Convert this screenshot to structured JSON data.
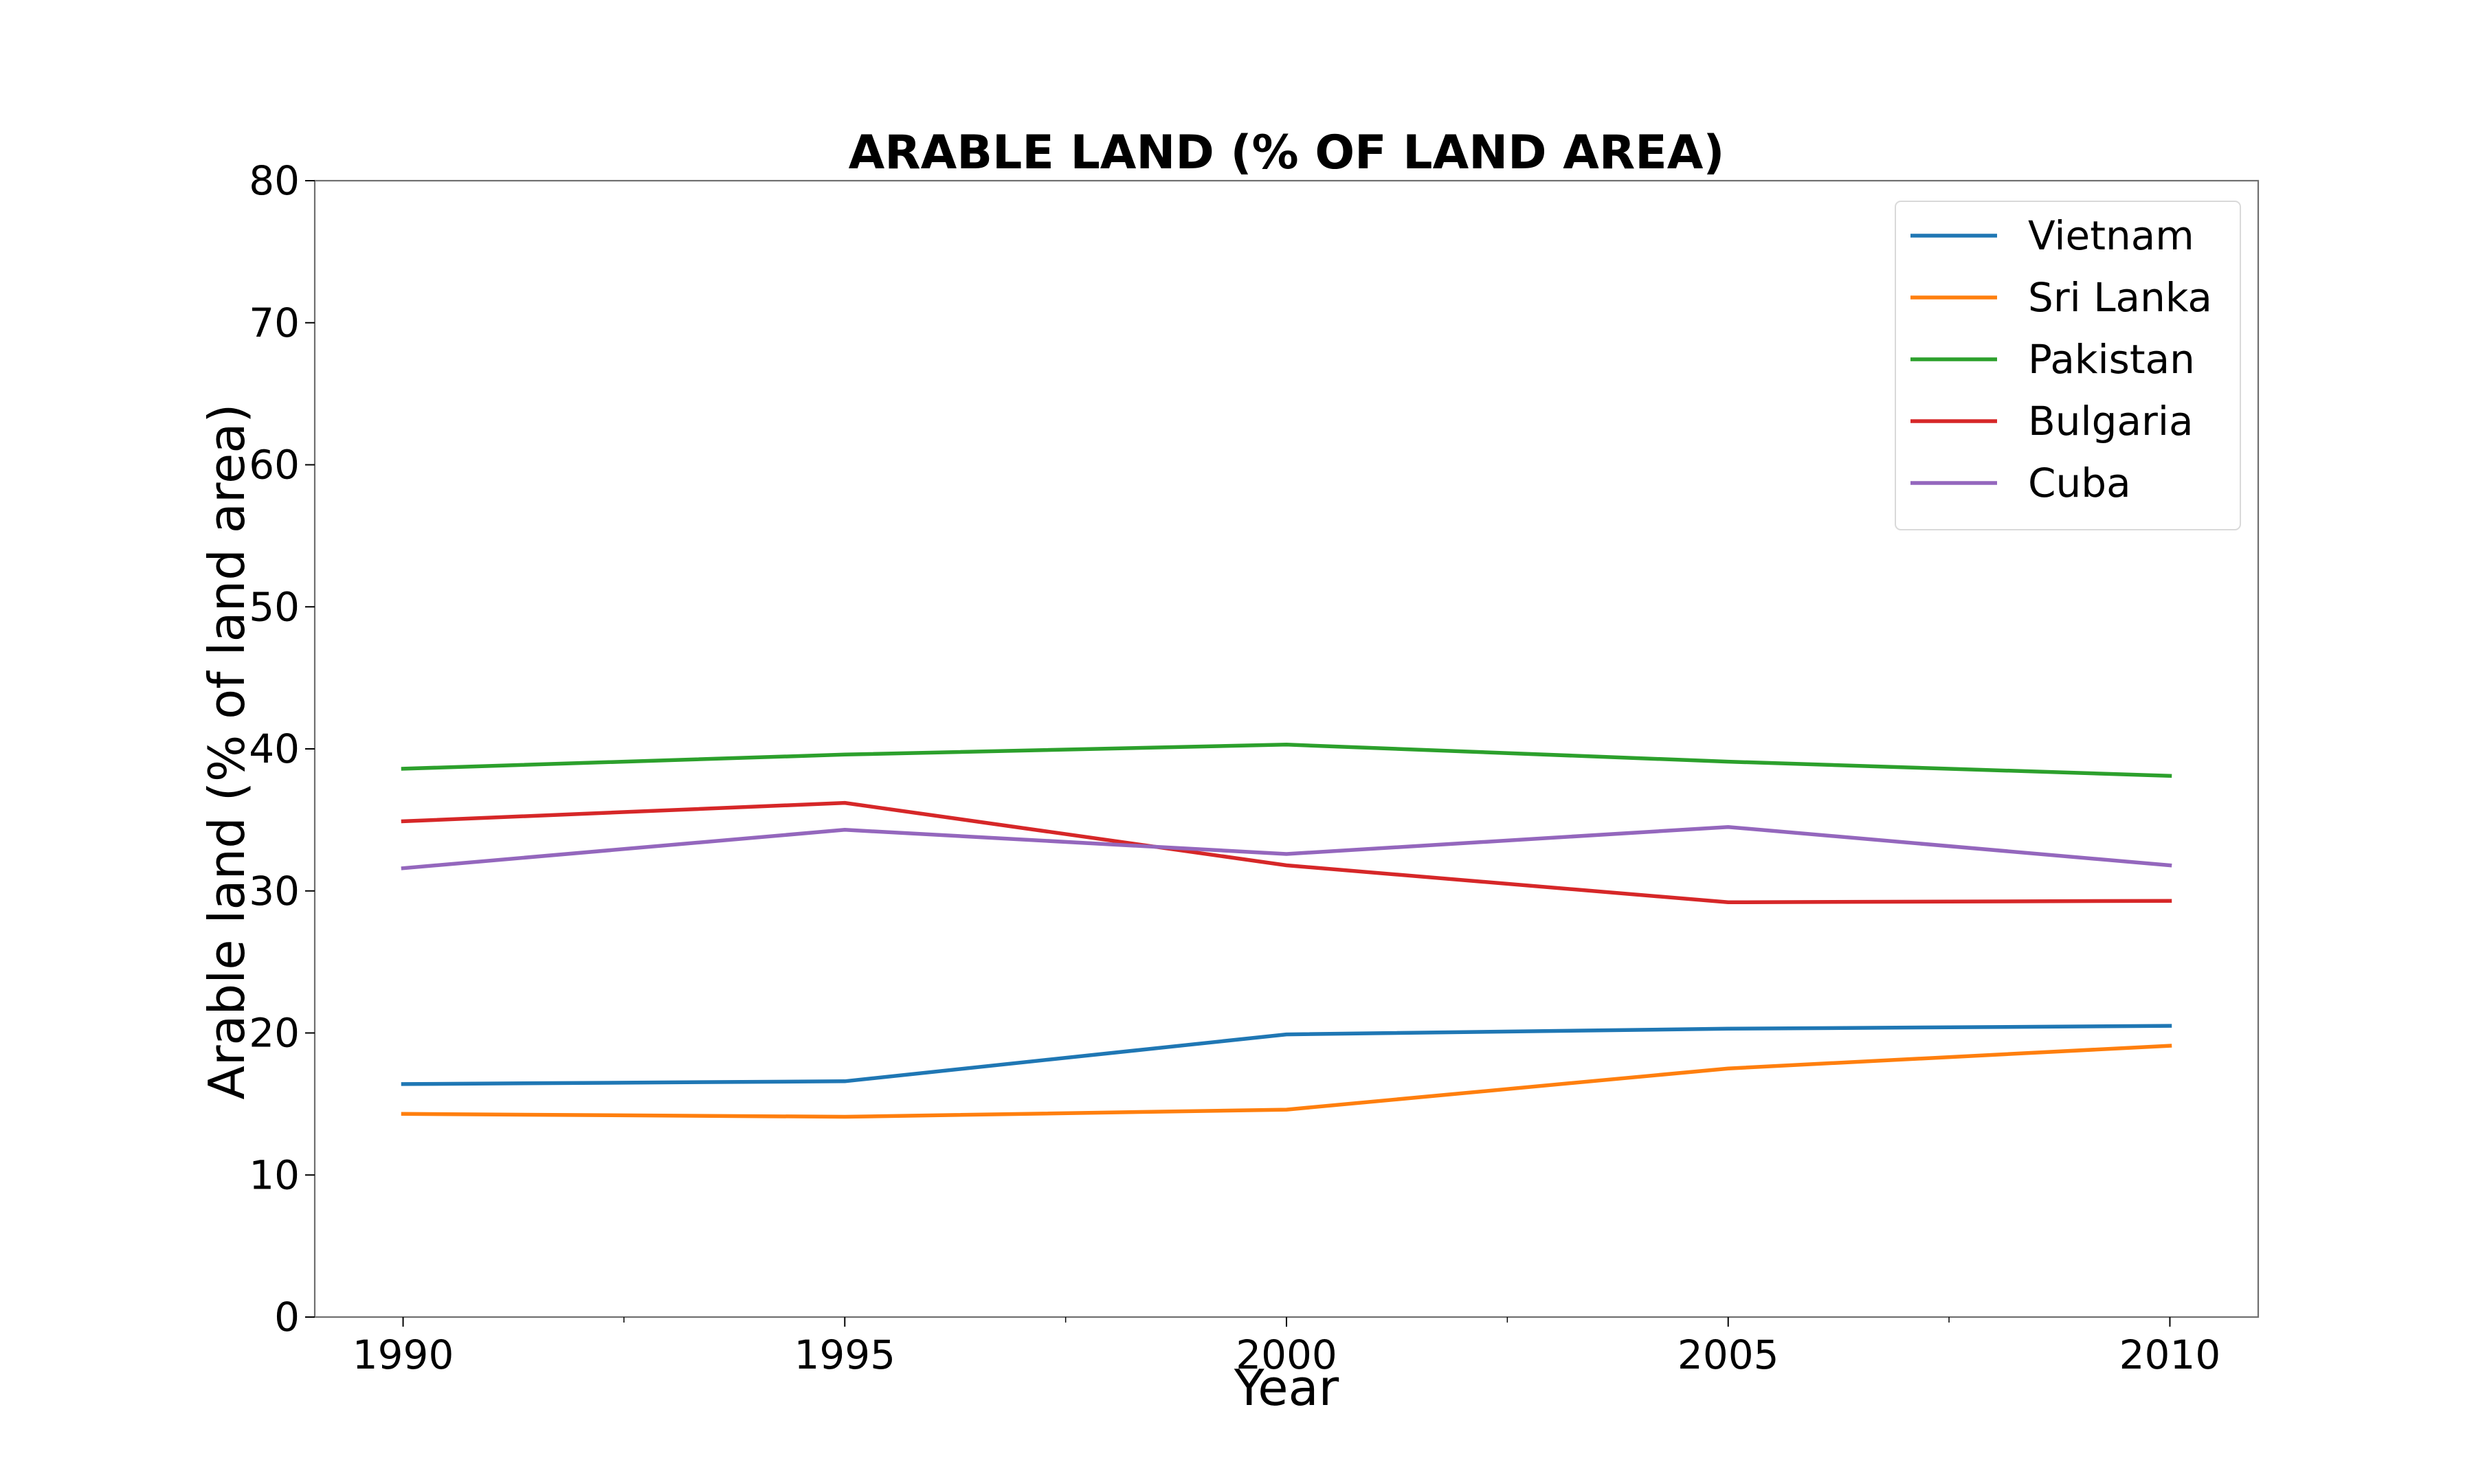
{
  "chart_data": {
    "type": "line",
    "title": "ARABLE LAND (% OF LAND AREA)",
    "xlabel": "Year",
    "ylabel": "Arable land (% of land area)",
    "x": [
      1990,
      1995,
      2000,
      2005,
      2010
    ],
    "x_ticks": [
      "1990",
      "1995",
      "2000",
      "2005",
      "2010"
    ],
    "xlim": [
      1989,
      2011
    ],
    "ylim": [
      0,
      80
    ],
    "y_ticks": [
      "0",
      "10",
      "20",
      "30",
      "40",
      "50",
      "60",
      "70",
      "80"
    ],
    "grid": false,
    "legend_position": "top-right",
    "series": [
      {
        "name": "Vietnam",
        "color": "#1f77b4",
        "values": [
          16.4,
          16.6,
          19.9,
          20.3,
          20.5
        ]
      },
      {
        "name": "Sri Lanka",
        "color": "#ff7f0e",
        "values": [
          14.3,
          14.1,
          14.6,
          17.5,
          19.1
        ]
      },
      {
        "name": "Pakistan",
        "color": "#2ca02c",
        "values": [
          38.6,
          39.6,
          40.3,
          39.1,
          38.1
        ]
      },
      {
        "name": "Bulgaria",
        "color": "#d62728",
        "values": [
          34.9,
          36.2,
          31.8,
          29.2,
          29.3
        ]
      },
      {
        "name": "Cuba",
        "color": "#9467bd",
        "values": [
          31.6,
          34.3,
          32.6,
          34.5,
          31.8
        ]
      }
    ]
  }
}
